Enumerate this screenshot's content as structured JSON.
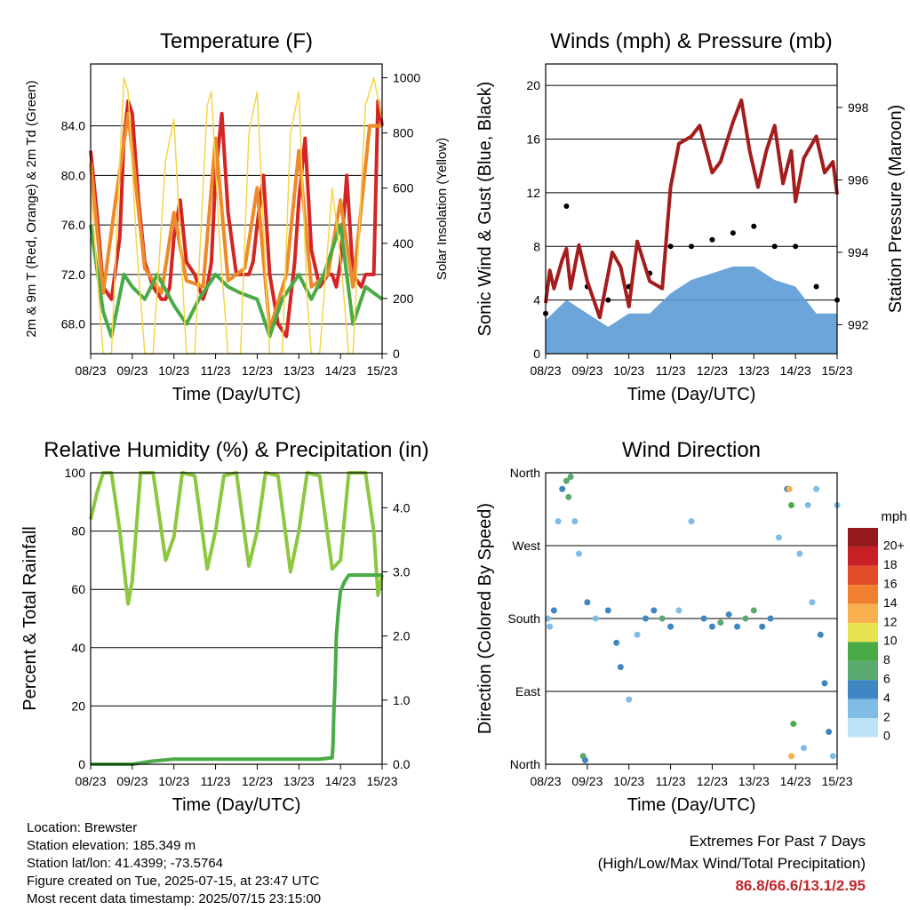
{
  "time_axis": {
    "ticks": [
      "08/23",
      "09/23",
      "10/23",
      "11/23",
      "12/23",
      "13/23",
      "14/23",
      "15/23"
    ]
  },
  "chart_data": [
    {
      "id": "temperature",
      "type": "line",
      "title": "Temperature (F)",
      "xlabel": "Time (Day/UTC)",
      "ylabel": "2m & 9m T (Red, Orange) & 2m Td (Green)",
      "ylabel_right": "Solar Insolation (Yellow)",
      "ylim": [
        65.6,
        89.0
      ],
      "yticks": [
        "68.0",
        "72.0",
        "76.0",
        "80.0",
        "84.0"
      ],
      "yticks_values": [
        68,
        72,
        76,
        80,
        84
      ],
      "ylim_right": [
        0,
        1050
      ],
      "yticks_right": [
        "0",
        "200",
        "400",
        "600",
        "800",
        "1000"
      ],
      "grid": true,
      "series": [
        {
          "color": "#d42525",
          "x": [
            0,
            0.15,
            0.3,
            0.5,
            0.7,
            0.8,
            0.9,
            1.0,
            1.15,
            1.3,
            1.5,
            1.7,
            1.8,
            1.9,
            2.0,
            2.15,
            2.3,
            2.5,
            2.7,
            2.8,
            2.9,
            3.0,
            3.15,
            3.3,
            3.5,
            3.7,
            3.8,
            3.9,
            4.0,
            4.15,
            4.3,
            4.5,
            4.7,
            4.8,
            4.9,
            5.0,
            5.15,
            5.3,
            5.5,
            5.7,
            5.8,
            5.9,
            6.0,
            6.15,
            6.3,
            6.5,
            6.6,
            6.8,
            6.9,
            7.0
          ],
          "y": [
            82,
            77,
            71,
            70,
            75,
            83,
            86,
            85,
            78,
            73,
            71,
            70,
            70,
            71,
            75,
            78,
            73,
            72,
            70,
            71,
            73,
            80,
            85,
            77,
            72,
            72,
            72,
            73,
            76,
            80,
            72,
            68,
            67,
            70,
            73,
            78,
            83,
            74,
            71,
            72,
            72,
            71,
            73,
            80,
            72,
            71,
            72,
            72,
            86,
            84
          ]
        },
        {
          "color": "#ee8a2a",
          "x": [
            0,
            0.3,
            0.6,
            0.9,
            1.3,
            1.7,
            2.0,
            2.3,
            2.7,
            3.0,
            3.3,
            3.7,
            4.0,
            4.3,
            4.7,
            5.0,
            5.3,
            5.7,
            6.0,
            6.3,
            6.7,
            7.0
          ],
          "y": [
            81,
            70.5,
            78,
            85,
            72.5,
            70.5,
            77,
            71.5,
            71,
            83,
            71.5,
            72.5,
            79,
            67.5,
            72,
            82,
            71,
            72,
            78,
            71,
            84,
            84
          ]
        },
        {
          "color": "#4aab46",
          "x": [
            0,
            0.3,
            0.5,
            0.8,
            1.0,
            1.3,
            1.6,
            2.0,
            2.3,
            2.6,
            3.0,
            3.3,
            3.6,
            4.0,
            4.3,
            4.6,
            5.0,
            5.3,
            5.6,
            6.0,
            6.3,
            6.6,
            7.0
          ],
          "y": [
            76,
            69,
            67,
            72,
            71,
            70,
            72,
            69.5,
            68,
            70,
            72,
            71,
            70.5,
            70,
            67,
            70,
            72,
            70,
            72,
            76,
            68,
            71,
            70
          ]
        },
        {
          "color": "#f5d54a",
          "axis": "right",
          "x": [
            0,
            0.3,
            0.5,
            0.7,
            0.8,
            0.9,
            1.1,
            1.3,
            1.5,
            1.8,
            2.0,
            2.3,
            2.5,
            2.8,
            2.9,
            3.1,
            3.3,
            3.6,
            3.8,
            4.0,
            4.2,
            4.3,
            4.6,
            4.8,
            5.0,
            5.2,
            5.3,
            5.5,
            5.8,
            6.0,
            6.2,
            6.3,
            6.6,
            6.8,
            7.0
          ],
          "y": [
            600,
            0,
            0,
            700,
            1000,
            950,
            400,
            0,
            0,
            700,
            850,
            0,
            0,
            900,
            950,
            400,
            0,
            0,
            800,
            950,
            300,
            0,
            0,
            800,
            950,
            200,
            0,
            0,
            600,
            350,
            0,
            0,
            900,
            1000,
            850
          ]
        }
      ]
    },
    {
      "id": "winds",
      "type": "scatter",
      "title": "Winds (mph) & Pressure (mb)",
      "xlabel": "Time (Day/UTC)",
      "ylabel": "Sonic Wind & Gust (Blue, Black)",
      "ylabel_right": "Station Pressure (Maroon)",
      "ylim": [
        0,
        21.6
      ],
      "yticks": [
        "0",
        "4",
        "8",
        "12",
        "16",
        "20"
      ],
      "yticks_values": [
        0,
        4,
        8,
        12,
        16,
        20
      ],
      "ylim_right": [
        991.2,
        999.2
      ],
      "yticks_right": [
        "992",
        "994",
        "996",
        "998"
      ],
      "yticks_right_values": [
        992,
        994,
        996,
        998
      ],
      "grid": true,
      "series": [
        {
          "color": "#5b9bd5",
          "type": "area",
          "x": [
            0,
            0.5,
            1,
            1.5,
            2,
            2.5,
            3,
            3.5,
            4,
            4.5,
            5,
            5.5,
            6,
            6.5,
            7
          ],
          "y": [
            2.5,
            4,
            3,
            2,
            3,
            3,
            4.5,
            5.5,
            6,
            6.5,
            6.5,
            5.5,
            5,
            3,
            3
          ]
        },
        {
          "color": "#000000",
          "type": "scatter",
          "x": [
            0,
            0.5,
            1,
            1.5,
            2,
            2.5,
            3,
            3.5,
            4,
            4.5,
            5,
            5.5,
            6,
            6.5,
            7
          ],
          "y": [
            3,
            11,
            5,
            4,
            5,
            6,
            8,
            8,
            8.5,
            9,
            9.5,
            8,
            8,
            5,
            4
          ]
        },
        {
          "color": "#a31d1d",
          "type": "line",
          "axis": "right",
          "x": [
            0,
            0.1,
            0.2,
            0.4,
            0.5,
            0.6,
            0.8,
            1.0,
            1.3,
            1.6,
            1.8,
            2.0,
            2.2,
            2.5,
            2.8,
            3.0,
            3.2,
            3.5,
            3.7,
            4.0,
            4.2,
            4.5,
            4.7,
            4.9,
            5.1,
            5.3,
            5.5,
            5.7,
            5.9,
            6.0,
            6.2,
            6.5,
            6.7,
            6.9,
            7.0
          ],
          "y": [
            992.6,
            993.5,
            993.0,
            993.8,
            994.1,
            993.0,
            994.2,
            993.2,
            992.2,
            994.0,
            993.6,
            992.5,
            994.3,
            993.2,
            993.0,
            995.8,
            997.0,
            997.2,
            997.5,
            996.2,
            996.5,
            997.6,
            998.2,
            996.8,
            995.8,
            996.8,
            997.5,
            995.9,
            996.8,
            995.4,
            996.6,
            997.2,
            996.2,
            996.5,
            995.6
          ]
        }
      ]
    },
    {
      "id": "humidity",
      "type": "line",
      "title": "Relative Humidity (%) & Precipitation (in)",
      "xlabel": "Time (Day/UTC)",
      "ylabel": "Percent & Total Rainfall",
      "ylim": [
        0,
        100
      ],
      "yticks": [
        "0",
        "20",
        "40",
        "60",
        "80",
        "100"
      ],
      "yticks_values": [
        0,
        20,
        40,
        60,
        80,
        100
      ],
      "ylim_right": [
        0,
        4.545
      ],
      "yticks_right": [
        "0.0",
        "1.0",
        "2.0",
        "3.0",
        "4.0"
      ],
      "yticks_right_values": [
        0,
        1,
        2,
        3,
        4
      ],
      "grid": true,
      "series": [
        {
          "color": "#8dc73f",
          "x": [
            0,
            0.15,
            0.3,
            0.5,
            0.7,
            0.9,
            1.0,
            1.2,
            1.5,
            1.8,
            2.0,
            2.2,
            2.5,
            2.8,
            3.0,
            3.2,
            3.5,
            3.8,
            4.0,
            4.2,
            4.5,
            4.8,
            5.0,
            5.2,
            5.5,
            5.8,
            6.0,
            6.2,
            6.5,
            6.6,
            6.8,
            6.9,
            7.0
          ],
          "y": [
            84,
            93,
            100,
            100,
            80,
            55,
            63,
            100,
            100,
            70,
            78,
            100,
            99,
            67,
            80,
            99,
            100,
            68,
            80,
            100,
            99,
            66,
            80,
            100,
            99,
            67,
            70,
            100,
            100,
            100,
            80,
            58,
            65
          ]
        },
        {
          "color": "#4aab46",
          "axis": "right",
          "x": [
            0,
            0.5,
            1,
            1.5,
            2,
            2.5,
            3,
            3.5,
            4,
            4.5,
            5,
            5.5,
            5.8,
            5.82,
            5.84,
            5.86,
            5.88,
            5.9,
            5.95,
            6.0,
            6.1,
            6.2,
            6.5,
            7.0
          ],
          "y": [
            0,
            0,
            0,
            0.05,
            0.08,
            0.08,
            0.08,
            0.08,
            0.08,
            0.08,
            0.08,
            0.08,
            0.1,
            0.3,
            0.8,
            1.1,
            1.5,
            2.0,
            2.4,
            2.7,
            2.85,
            2.95,
            2.95,
            2.95
          ]
        }
      ]
    },
    {
      "id": "wind_direction",
      "type": "scatter",
      "title": "Wind Direction",
      "xlabel": "Time (Day/UTC)",
      "ylabel": "Direction (Colored By Speed)",
      "yticks": [
        "North",
        "East",
        "South",
        "West",
        "North"
      ],
      "yticks_values": [
        0,
        90,
        180,
        270,
        360
      ],
      "ylim": [
        0,
        360
      ],
      "grid": true,
      "legend": {
        "title": "mph",
        "placement": "right",
        "labels": [
          "0",
          "2",
          "4",
          "6",
          "8",
          "10",
          "12",
          "14",
          "16",
          "18",
          "20+"
        ],
        "colors": [
          "#bde3f7",
          "#7fbde6",
          "#3f86c3",
          "#5aa96f",
          "#4aab46",
          "#e7e352",
          "#f8b14e",
          "#f07f2e",
          "#e34b2a",
          "#c61f26",
          "#951a1d"
        ]
      },
      "points": [
        [
          0.05,
          180,
          2
        ],
        [
          0.1,
          170,
          2
        ],
        [
          0.2,
          190,
          4
        ],
        [
          0.3,
          300,
          2
        ],
        [
          0.4,
          340,
          4
        ],
        [
          0.5,
          350,
          6
        ],
        [
          0.55,
          330,
          6
        ],
        [
          0.6,
          355,
          6
        ],
        [
          0.7,
          300,
          2
        ],
        [
          0.8,
          260,
          2
        ],
        [
          0.9,
          10,
          6
        ],
        [
          0.95,
          5,
          4
        ],
        [
          1.0,
          200,
          4
        ],
        [
          1.2,
          180,
          2
        ],
        [
          1.5,
          190,
          4
        ],
        [
          1.7,
          150,
          4
        ],
        [
          1.8,
          120,
          4
        ],
        [
          2.0,
          80,
          2
        ],
        [
          2.2,
          160,
          2
        ],
        [
          2.4,
          180,
          4
        ],
        [
          2.6,
          190,
          4
        ],
        [
          2.8,
          180,
          6
        ],
        [
          3.0,
          170,
          4
        ],
        [
          3.2,
          190,
          2
        ],
        [
          3.5,
          300,
          2
        ],
        [
          3.8,
          180,
          4
        ],
        [
          4.0,
          170,
          4
        ],
        [
          4.2,
          175,
          6
        ],
        [
          4.4,
          185,
          4
        ],
        [
          4.6,
          170,
          4
        ],
        [
          4.8,
          180,
          6
        ],
        [
          5.0,
          190,
          6
        ],
        [
          5.2,
          170,
          4
        ],
        [
          5.4,
          180,
          4
        ],
        [
          5.6,
          280,
          2
        ],
        [
          5.8,
          340,
          4
        ],
        [
          5.85,
          340,
          12
        ],
        [
          5.9,
          320,
          8
        ],
        [
          5.95,
          50,
          8
        ],
        [
          5.9,
          10,
          12
        ],
        [
          6.1,
          260,
          2
        ],
        [
          6.3,
          320,
          2
        ],
        [
          6.5,
          340,
          2
        ],
        [
          6.6,
          160,
          4
        ],
        [
          6.7,
          100,
          4
        ],
        [
          6.8,
          40,
          4
        ],
        [
          6.9,
          10,
          2
        ],
        [
          7.0,
          320,
          2
        ],
        [
          6.2,
          20,
          2
        ],
        [
          6.4,
          200,
          2
        ]
      ]
    }
  ],
  "footer": {
    "location": "Location: Brewster",
    "elevation": "Station elevation: 185.349 m",
    "latlon": "Station lat/lon: 41.4399; -73.5764",
    "created": "Figure created on Tue, 2025-07-15, at 23:47 UTC",
    "recent": "Most recent data timestamp: 2025/07/15 23:15:00",
    "extremes_title": "Extremes For Past 7 Days",
    "extremes_subtitle": "(High/Low/Max Wind/Total Precipitation)",
    "extremes_value": "86.8/66.6/13.1/2.95"
  }
}
